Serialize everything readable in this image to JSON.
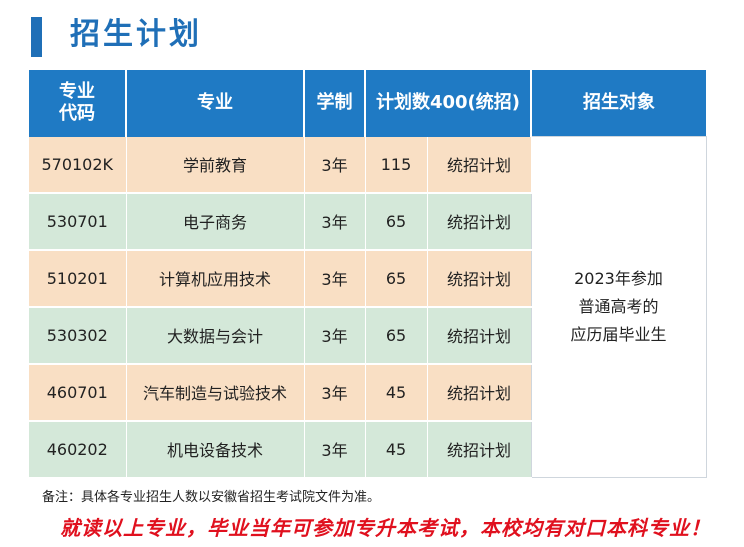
{
  "page": {
    "title": "招生计划"
  },
  "table": {
    "headers": {
      "code_line1": "专业",
      "code_line2": "代码",
      "major": "专业",
      "duration": "学制",
      "plan": "计划数400(统招)",
      "target": "招生对象"
    },
    "rows": [
      {
        "code": "570102K",
        "major": "学前教育",
        "duration": "3年",
        "count": "115",
        "type": "统招计划"
      },
      {
        "code": "530701",
        "major": "电子商务",
        "duration": "3年",
        "count": "65",
        "type": "统招计划"
      },
      {
        "code": "510201",
        "major": "计算机应用技术",
        "duration": "3年",
        "count": "65",
        "type": "统招计划"
      },
      {
        "code": "530302",
        "major": "大数据与会计",
        "duration": "3年",
        "count": "65",
        "type": "统招计划"
      },
      {
        "code": "460701",
        "major": "汽车制造与试验技术",
        "duration": "3年",
        "count": "45",
        "type": "统招计划"
      },
      {
        "code": "460202",
        "major": "机电设备技术",
        "duration": "3年",
        "count": "45",
        "type": "统招计划"
      }
    ],
    "target_lines": [
      "2023年参加",
      "普通高考的",
      "应历届毕业生"
    ]
  },
  "note": "备注：具体各专业招生人数以安徽省招生考试院文件为准。",
  "slogan": "就读以上专业，毕业当年可参加专升本考试，本校均有对口本科专业！",
  "colors": {
    "header_blue": "#1f7ac4",
    "title_blue": "#1f6fb7",
    "row_peach": "#f9dfc4",
    "row_green": "#d4e8d9",
    "slogan_red": "#e0101e"
  }
}
